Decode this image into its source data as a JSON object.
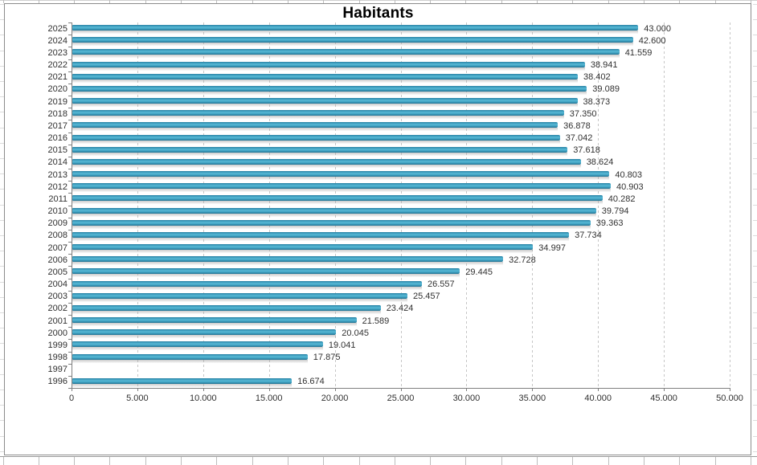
{
  "chart_data": {
    "type": "bar",
    "orientation": "horizontal",
    "title": "Habitants",
    "categories": [
      "2025",
      "2024",
      "2023",
      "2022",
      "2021",
      "2020",
      "2019",
      "2018",
      "2017",
      "2016",
      "2015",
      "2014",
      "2013",
      "2012",
      "2011",
      "2010",
      "2009",
      "2008",
      "2007",
      "2006",
      "2005",
      "2004",
      "2003",
      "2002",
      "2001",
      "2000",
      "1999",
      "1998",
      "1997",
      "1996"
    ],
    "values": [
      43000,
      42600,
      41559,
      38941,
      38402,
      39089,
      38373,
      37350,
      36878,
      37042,
      37618,
      38624,
      40803,
      40903,
      40282,
      39794,
      39363,
      37734,
      34997,
      32728,
      29445,
      26557,
      25457,
      23424,
      21589,
      20045,
      19041,
      17875,
      null,
      16674
    ],
    "value_labels": [
      "43.000",
      "42.600",
      "41.559",
      "38.941",
      "38.402",
      "39.089",
      "38.373",
      "37.350",
      "36.878",
      "37.042",
      "37.618",
      "38.624",
      "40.803",
      "40.903",
      "40.282",
      "39.794",
      "39.363",
      "37.734",
      "34.997",
      "32.728",
      "29.445",
      "26.557",
      "25.457",
      "23.424",
      "21.589",
      "20.045",
      "19.041",
      "17.875",
      "",
      "16.674"
    ],
    "xlabel": "",
    "ylabel": "",
    "xlim": [
      0,
      50000
    ],
    "x_tick_step": 5000,
    "x_tick_labels": [
      "0",
      "5.000",
      "10.000",
      "15.000",
      "20.000",
      "25.000",
      "30.000",
      "35.000",
      "40.000",
      "45.000",
      "50.000"
    ],
    "grid": "vertical-dashed",
    "legend": "none",
    "bar_color": "#3aa2c4",
    "bar_color_dark": "#1f6d8c",
    "bar_color_light": "#58b8d4",
    "gridline_color": "#c6c6c6",
    "axis_color": "#808080"
  }
}
